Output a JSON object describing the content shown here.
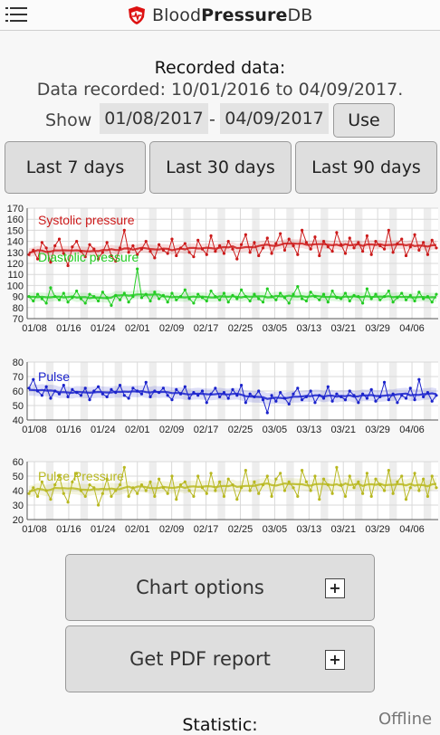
{
  "app": {
    "brand_prefix": "Blood",
    "brand_bold": "Pressure",
    "brand_suffix": "DB"
  },
  "recorded": {
    "title": "Recorded data:",
    "range_text": "Data recorded: 10/01/2016 to 04/09/2017.",
    "show_label": "Show",
    "from_date": "01/08/2017",
    "separator": "-",
    "to_date": "04/09/2017",
    "use_label": "Use"
  },
  "range_buttons": {
    "last7": "Last 7 days",
    "last30": "Last 30 days",
    "last90": "Last 90 days"
  },
  "chart_data": [
    {
      "type": "line",
      "x_tick_labels": [
        "01/08",
        "01/16",
        "01/24",
        "02/01",
        "02/09",
        "02/17",
        "02/25",
        "03/05",
        "03/13",
        "03/21",
        "03/29",
        "04/06"
      ],
      "ylim": [
        70,
        170
      ],
      "y_ticks": [
        70,
        80,
        90,
        100,
        110,
        120,
        130,
        140,
        150,
        160,
        170
      ],
      "grid": true,
      "series": [
        {
          "name": "Systolic pressure",
          "color": "#cc1a1a",
          "values": [
            128,
            132,
            124,
            139,
            134,
            121,
            136,
            142,
            129,
            118,
            135,
            140,
            131,
            126,
            137,
            133,
            124,
            130,
            139,
            127,
            122,
            134,
            150,
            130,
            136,
            128,
            133,
            140,
            131,
            125,
            137,
            132,
            129,
            142,
            127,
            134,
            138,
            130,
            126,
            141,
            133,
            128,
            145,
            131,
            136,
            129,
            140,
            133,
            124,
            137,
            146,
            130,
            139,
            127,
            134,
            143,
            129,
            138,
            147,
            132,
            142,
            136,
            128,
            150,
            139,
            133,
            144,
            127,
            140,
            135,
            131,
            148,
            137,
            129,
            143,
            134,
            139,
            131,
            145,
            128,
            140,
            136,
            133,
            150,
            130,
            138,
            142,
            127,
            135,
            146,
            132,
            139,
            128,
            141,
            134
          ]
        },
        {
          "name": "Diastolic pressure",
          "color": "#22cc22",
          "values": [
            90,
            86,
            92,
            88,
            84,
            98,
            90,
            87,
            93,
            85,
            89,
            95,
            88,
            84,
            92,
            90,
            86,
            94,
            89,
            82,
            91,
            87,
            93,
            85,
            90,
            115,
            89,
            92,
            86,
            94,
            88,
            91,
            85,
            93,
            87,
            90,
            96,
            88,
            84,
            92,
            89,
            86,
            95,
            90,
            87,
            93,
            85,
            91,
            88,
            96,
            90,
            86,
            92,
            88,
            85,
            97,
            90,
            87,
            93,
            89,
            84,
            92,
            99,
            88,
            86,
            94,
            90,
            87,
            92,
            85,
            95,
            89,
            88,
            93,
            86,
            91,
            90,
            84,
            97,
            88,
            92,
            87,
            90,
            95,
            85,
            89,
            93,
            87,
            91,
            86,
            94,
            88,
            90,
            85,
            92
          ]
        }
      ]
    },
    {
      "type": "line",
      "x_tick_labels": [
        "01/08",
        "01/16",
        "01/24",
        "02/01",
        "02/09",
        "02/17",
        "02/25",
        "03/05",
        "03/13",
        "03/21",
        "03/29",
        "04/06"
      ],
      "ylim": [
        40,
        80
      ],
      "y_ticks": [
        40,
        50,
        60,
        70,
        80
      ],
      "grid": true,
      "series": [
        {
          "name": "Pulse",
          "color": "#1a22cc",
          "values": [
            62,
            68,
            60,
            57,
            63,
            55,
            60,
            58,
            64,
            56,
            61,
            59,
            57,
            62,
            54,
            60,
            63,
            58,
            56,
            61,
            59,
            64,
            57,
            55,
            62,
            60,
            58,
            66,
            56,
            60,
            59,
            62,
            57,
            54,
            61,
            58,
            63,
            55,
            59,
            57,
            60,
            52,
            58,
            62,
            56,
            59,
            55,
            61,
            57,
            64,
            52,
            58,
            56,
            60,
            54,
            45,
            57,
            53,
            59,
            55,
            51,
            58,
            62,
            54,
            56,
            60,
            52,
            57,
            55,
            63,
            53,
            58,
            56,
            54,
            60,
            57,
            52,
            58,
            55,
            61,
            53,
            56,
            66,
            54,
            58,
            52,
            57,
            55,
            62,
            54,
            68,
            56,
            59,
            53,
            57
          ]
        }
      ]
    },
    {
      "type": "line",
      "x_tick_labels": [
        "01/08",
        "01/16",
        "01/24",
        "02/01",
        "02/09",
        "02/17",
        "02/25",
        "03/05",
        "03/13",
        "03/21",
        "03/29",
        "04/06"
      ],
      "ylim": [
        20,
        60
      ],
      "y_ticks": [
        20,
        30,
        40,
        50,
        60
      ],
      "grid": true,
      "series": [
        {
          "name": "Pulse Pressure",
          "color": "#b8b820",
          "values": [
            38,
            42,
            36,
            46,
            40,
            34,
            44,
            50,
            38,
            32,
            46,
            52,
            40,
            36,
            44,
            42,
            30,
            38,
            48,
            36,
            40,
            44,
            56,
            36,
            42,
            38,
            44,
            40,
            46,
            36,
            48,
            42,
            38,
            50,
            34,
            44,
            46,
            40,
            36,
            50,
            42,
            38,
            52,
            40,
            46,
            36,
            48,
            44,
            34,
            42,
            54,
            40,
            46,
            38,
            44,
            50,
            36,
            48,
            52,
            40,
            46,
            42,
            36,
            54,
            46,
            40,
            50,
            34,
            48,
            44,
            38,
            56,
            44,
            36,
            50,
            42,
            46,
            38,
            52,
            36,
            48,
            44,
            40,
            54,
            38,
            46,
            50,
            34,
            42,
            52,
            40,
            48,
            36,
            50,
            42
          ]
        }
      ]
    }
  ],
  "buttons": {
    "chart_options": "Chart options",
    "pdf_report": "Get PDF report",
    "plus_symbol": "+"
  },
  "statistic_label": "Statistic:",
  "status": "Offline"
}
